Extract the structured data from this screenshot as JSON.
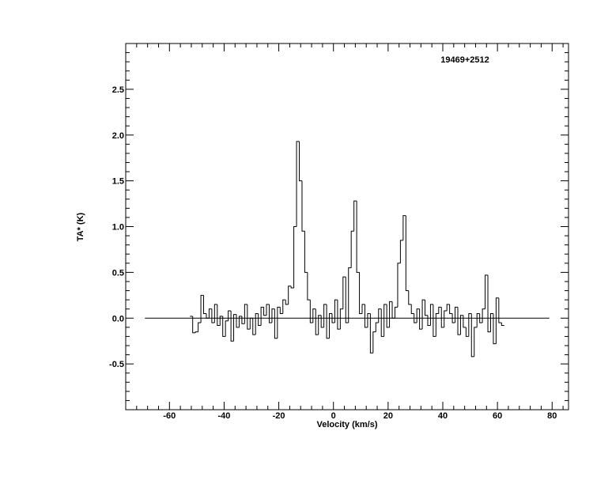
{
  "chart_data": {
    "type": "step",
    "annotation": "19469+2512",
    "x_label": "Velocity (km/s)",
    "y_label": "TA* (K)",
    "xlim": [
      -76,
      86
    ],
    "ylim": [
      -1,
      3
    ],
    "xticks": [
      -60,
      -40,
      -20,
      0,
      20,
      40,
      60,
      80
    ],
    "yticks": [
      -0.5,
      {
        "value": 0,
        "label": "0.0"
      },
      0.5,
      {
        "value": 1,
        "label": "1.0"
      },
      1.5,
      {
        "value": 2,
        "label": "2.0"
      },
      2.5
    ],
    "xminorticks": [
      -76,
      -72,
      -68,
      -64,
      -56,
      -52,
      -48,
      -44,
      -36,
      -32,
      -28,
      -24,
      -16,
      -12,
      -8,
      -4,
      4,
      8,
      12,
      16,
      24,
      28,
      32,
      36,
      44,
      48,
      52,
      56,
      64,
      68,
      72,
      76,
      84
    ],
    "yminorticks": [
      -0.9,
      -0.8,
      -0.7,
      -0.6,
      -0.4,
      -0.3,
      -0.2,
      -0.1,
      0.1,
      0.2,
      0.3,
      0.4,
      0.6,
      0.7,
      0.8,
      0.9,
      1.1,
      1.2,
      1.3,
      1.4,
      1.6,
      1.7,
      1.8,
      1.9,
      2.1,
      2.2,
      2.3,
      2.4,
      2.6,
      2.7,
      2.8,
      2.9
    ],
    "baseline": {
      "x": [
        -69,
        79
      ],
      "y": 0
    },
    "color": "#000000",
    "x": [
      -52,
      -51,
      -50,
      -49,
      -48,
      -47,
      -46,
      -45,
      -44,
      -43,
      -42,
      -41,
      -40,
      -39,
      -38,
      -37,
      -36,
      -35,
      -34,
      -33,
      -32,
      -31,
      -30,
      -29,
      -28,
      -27,
      -26,
      -25,
      -24,
      -23,
      -22,
      -21,
      -20,
      -19,
      -18,
      -17,
      -16,
      -15,
      -14,
      -13,
      -12,
      -11,
      -10,
      -9,
      -8,
      -7,
      -6,
      -5,
      -4,
      -3,
      -2,
      -1,
      0,
      1,
      2,
      3,
      4,
      5,
      6,
      7,
      8,
      9,
      10,
      11,
      12,
      13,
      14,
      15,
      16,
      17,
      18,
      19,
      20,
      21,
      22,
      23,
      24,
      25,
      26,
      27,
      28,
      29,
      30,
      31,
      32,
      33,
      34,
      35,
      36,
      37,
      38,
      39,
      40,
      41,
      42,
      43,
      44,
      45,
      46,
      47,
      48,
      49,
      50,
      51,
      52,
      53,
      54,
      55,
      56,
      57,
      58,
      59,
      60,
      61,
      62
    ],
    "values": [
      0.02,
      -0.16,
      -0.15,
      -0.05,
      0.25,
      0.05,
      0.0,
      0.1,
      -0.05,
      0.15,
      -0.08,
      0.02,
      -0.2,
      -0.03,
      0.08,
      -0.25,
      0.04,
      -0.1,
      0.02,
      -0.06,
      0.15,
      -0.12,
      0.0,
      -0.18,
      0.05,
      -0.08,
      0.12,
      0.03,
      0.15,
      -0.05,
      0.1,
      -0.22,
      0.12,
      0.05,
      0.2,
      0.15,
      0.35,
      0.33,
      1.0,
      1.93,
      1.5,
      0.95,
      0.5,
      0.2,
      -0.05,
      0.1,
      -0.18,
      0.03,
      -0.1,
      0.15,
      -0.22,
      0.05,
      -0.05,
      0.2,
      -0.12,
      0.1,
      0.45,
      -0.05,
      0.55,
      0.95,
      1.28,
      0.5,
      0.05,
      0.15,
      -0.1,
      0.05,
      -0.38,
      -0.15,
      -0.05,
      0.1,
      -0.2,
      0.15,
      -0.1,
      0.18,
      0.0,
      0.12,
      0.6,
      0.85,
      1.12,
      0.3,
      0.15,
      0.05,
      -0.05,
      0.1,
      -0.12,
      0.2,
      0.03,
      -0.08,
      0.15,
      -0.2,
      0.05,
      0.12,
      -0.1,
      0.08,
      0.15,
      0.05,
      -0.05,
      0.12,
      -0.18,
      0.03,
      -0.1,
      -0.2,
      0.05,
      -0.42,
      -0.1,
      0.05,
      -0.05,
      0.1,
      0.47,
      -0.15,
      0.05,
      -0.28,
      0.22,
      -0.05,
      -0.08
    ]
  }
}
